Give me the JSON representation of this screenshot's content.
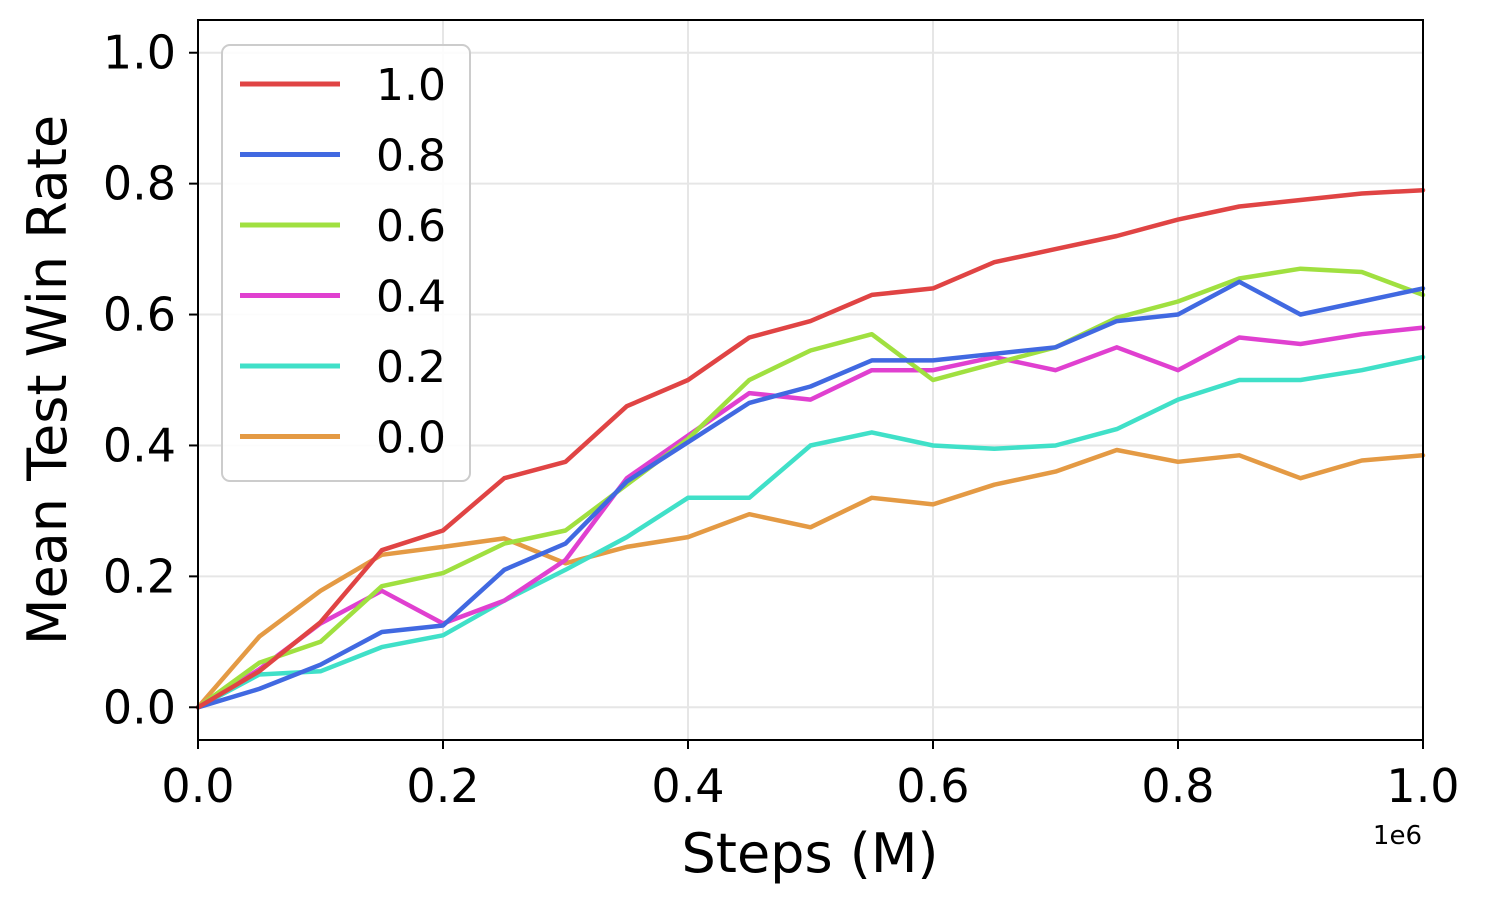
{
  "chart_data": {
    "type": "line",
    "title": "",
    "xlabel": "Steps (M)",
    "ylabel": "Mean Test Win Rate",
    "x_offset_label": "1e6",
    "xlim": [
      0,
      1.0
    ],
    "ylim": [
      -0.05,
      1.05
    ],
    "xticks": [
      "0.0",
      "0.2",
      "0.4",
      "0.6",
      "0.8",
      "1.0"
    ],
    "yticks": [
      "0.0",
      "0.2",
      "0.4",
      "0.6",
      "0.8",
      "1.0"
    ],
    "grid": true,
    "legend_position": "top-left",
    "x": [
      0,
      0.05,
      0.1,
      0.15,
      0.2,
      0.25,
      0.3,
      0.35,
      0.4,
      0.45,
      0.5,
      0.55,
      0.6,
      0.65,
      0.7,
      0.75,
      0.8,
      0.85,
      0.9,
      0.95,
      1.0
    ],
    "series": [
      {
        "name": "1.0",
        "color": "#e04444",
        "values": [
          0.0,
          0.055,
          0.13,
          0.24,
          0.27,
          0.35,
          0.375,
          0.46,
          0.5,
          0.565,
          0.59,
          0.63,
          0.64,
          0.68,
          0.7,
          0.72,
          0.745,
          0.765,
          0.775,
          0.785,
          0.79
        ]
      },
      {
        "name": "0.8",
        "color": "#4169e1",
        "values": [
          0.0,
          0.028,
          0.065,
          0.115,
          0.125,
          0.21,
          0.25,
          0.345,
          0.405,
          0.465,
          0.49,
          0.53,
          0.53,
          0.54,
          0.55,
          0.59,
          0.6,
          0.65,
          0.6,
          0.62,
          0.64
        ]
      },
      {
        "name": "0.6",
        "color": "#a0e040",
        "values": [
          0.0,
          0.068,
          0.1,
          0.185,
          0.205,
          0.25,
          0.27,
          0.34,
          0.41,
          0.5,
          0.545,
          0.57,
          0.5,
          0.525,
          0.55,
          0.595,
          0.62,
          0.655,
          0.67,
          0.665,
          0.63
        ]
      },
      {
        "name": "0.4",
        "color": "#e040d0",
        "values": [
          0.0,
          0.058,
          0.128,
          0.178,
          0.128,
          0.163,
          0.225,
          0.35,
          0.415,
          0.48,
          0.47,
          0.515,
          0.515,
          0.535,
          0.515,
          0.55,
          0.515,
          0.565,
          0.555,
          0.57,
          0.58
        ]
      },
      {
        "name": "0.2",
        "color": "#40e0c8",
        "values": [
          0.0,
          0.05,
          0.055,
          0.092,
          0.11,
          0.163,
          0.21,
          0.26,
          0.32,
          0.32,
          0.4,
          0.42,
          0.4,
          0.395,
          0.4,
          0.425,
          0.47,
          0.5,
          0.5,
          0.515,
          0.535
        ]
      },
      {
        "name": "0.0",
        "color": "#e49a44",
        "values": [
          0.0,
          0.108,
          0.178,
          0.233,
          0.245,
          0.258,
          0.22,
          0.245,
          0.26,
          0.295,
          0.275,
          0.32,
          0.31,
          0.34,
          0.36,
          0.393,
          0.375,
          0.385,
          0.35,
          0.377,
          0.385
        ]
      }
    ]
  }
}
